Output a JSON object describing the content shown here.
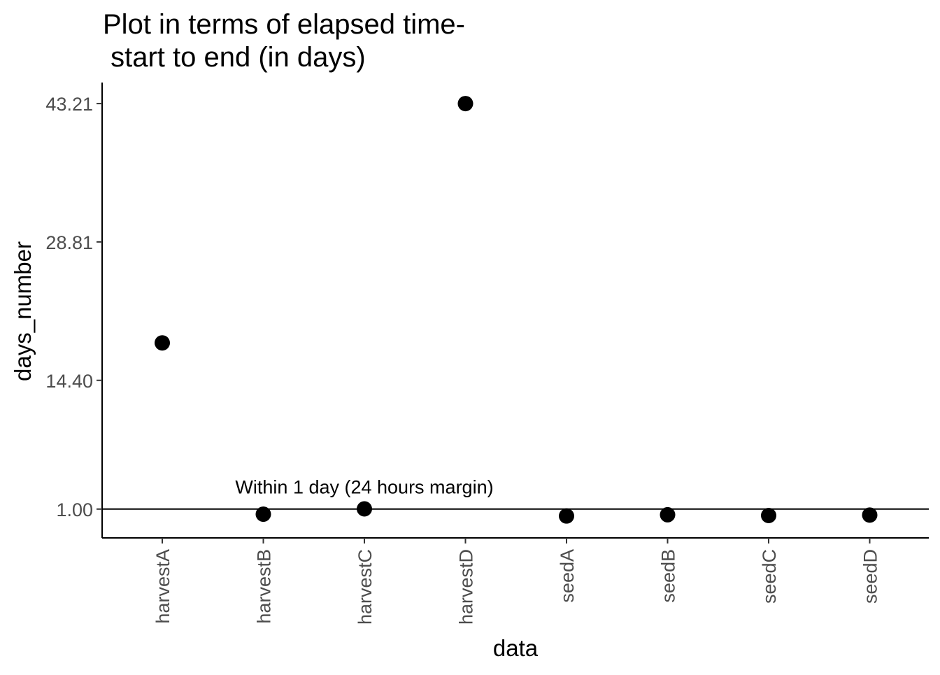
{
  "chart_data": {
    "type": "scatter",
    "title_lines": [
      "Plot in terms of elapsed time-",
      " start to end (in days)"
    ],
    "xlabel": "data",
    "ylabel": "days_number",
    "categories": [
      "harvestA",
      "harvestB",
      "harvestC",
      "harvestD",
      "seedA",
      "seedB",
      "seedC",
      "seedD"
    ],
    "values": [
      18.3,
      0.47,
      1.02,
      43.21,
      0.28,
      0.41,
      0.33,
      0.38
    ],
    "y_ticks": [
      1.0,
      14.4,
      28.81,
      43.21
    ],
    "y_tick_labels": [
      "1.00",
      "14.40",
      "28.81",
      "43.21"
    ],
    "ylim": [
      -2.0,
      45.4
    ],
    "hline": 1.0,
    "annotation": {
      "text": "Within 1 day (24 hours margin)",
      "x_category": "harvestC",
      "y": 3.35
    },
    "grid": false,
    "legend": "none",
    "point_color": "#000000",
    "line_color": "#000000"
  }
}
